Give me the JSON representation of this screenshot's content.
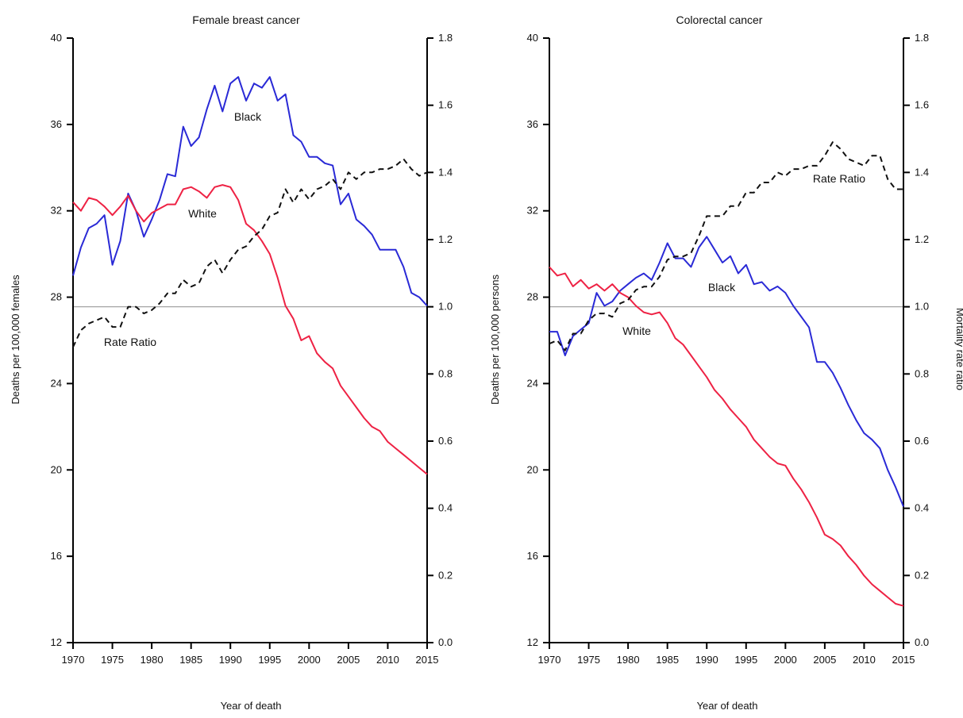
{
  "chart_data": [
    {
      "type": "line",
      "title": "Female breast cancer",
      "xlabel": "Year of death",
      "ylabel": "Deaths per 100,000 females",
      "y2label": "",
      "xlim": [
        1970,
        2015
      ],
      "ylim": [
        12,
        40
      ],
      "y2lim": [
        0.0,
        1.8
      ],
      "x_ticks": [
        "1970",
        "1975",
        "1980",
        "1985",
        "1990",
        "1995",
        "2000",
        "2005",
        "2010",
        "2015"
      ],
      "y_ticks": [
        "12",
        "16",
        "20",
        "24",
        "28",
        "32",
        "36",
        "40"
      ],
      "y2_ticks": [
        "0.0",
        "0.2",
        "0.4",
        "0.6",
        "0.8",
        "1.0",
        "1.2",
        "1.4",
        "1.6",
        "1.8"
      ],
      "reference_line_y2": 1.0,
      "x": [
        1970,
        1971,
        1972,
        1973,
        1974,
        1975,
        1976,
        1977,
        1978,
        1979,
        1980,
        1981,
        1982,
        1983,
        1984,
        1985,
        1986,
        1987,
        1988,
        1989,
        1990,
        1991,
        1992,
        1993,
        1994,
        1995,
        1996,
        1997,
        1998,
        1999,
        2000,
        2001,
        2002,
        2003,
        2004,
        2005,
        2006,
        2007,
        2008,
        2009,
        2010,
        2011,
        2012,
        2013,
        2014,
        2015
      ],
      "series": [
        {
          "name": "Black",
          "axis": "left",
          "color": "#2a2ad6",
          "dashed": false,
          "values": [
            29.0,
            30.3,
            31.2,
            31.4,
            31.8,
            29.5,
            30.6,
            32.8,
            32.0,
            30.8,
            31.6,
            32.5,
            33.7,
            33.6,
            35.9,
            35.0,
            35.4,
            36.7,
            37.8,
            36.6,
            37.9,
            38.2,
            37.1,
            37.9,
            37.7,
            38.2,
            37.1,
            37.4,
            35.5,
            35.2,
            34.5,
            34.5,
            34.2,
            34.1,
            32.3,
            32.8,
            31.6,
            31.3,
            30.9,
            30.2,
            30.2,
            30.2,
            29.4,
            28.2,
            28.0,
            27.6
          ]
        },
        {
          "name": "White",
          "axis": "left",
          "color": "#ee2244",
          "dashed": false,
          "values": [
            32.4,
            32.0,
            32.6,
            32.5,
            32.2,
            31.8,
            32.2,
            32.7,
            32.0,
            31.5,
            31.9,
            32.1,
            32.3,
            32.3,
            33.0,
            33.1,
            32.9,
            32.6,
            33.1,
            33.2,
            33.1,
            32.5,
            31.4,
            31.1,
            30.6,
            30.0,
            28.9,
            27.6,
            27.0,
            26.0,
            26.2,
            25.4,
            25.0,
            24.7,
            23.9,
            23.4,
            22.9,
            22.4,
            22.0,
            21.8,
            21.3,
            21.0,
            20.7,
            20.4,
            20.1,
            19.8
          ]
        },
        {
          "name": "Rate Ratio",
          "axis": "right",
          "color": "#111111",
          "dashed": true,
          "values": [
            0.88,
            0.93,
            0.95,
            0.96,
            0.97,
            0.94,
            0.94,
            1.0,
            1.0,
            0.98,
            0.99,
            1.01,
            1.04,
            1.04,
            1.08,
            1.06,
            1.07,
            1.12,
            1.14,
            1.1,
            1.14,
            1.17,
            1.18,
            1.21,
            1.23,
            1.27,
            1.28,
            1.35,
            1.31,
            1.35,
            1.32,
            1.35,
            1.36,
            1.38,
            1.35,
            1.4,
            1.38,
            1.4,
            1.4,
            1.41,
            1.41,
            1.42,
            1.44,
            1.41,
            1.39,
            1.4
          ]
        }
      ],
      "labels": [
        "Black",
        "White",
        "Rate Ratio"
      ]
    },
    {
      "type": "line",
      "title": "Colorectal cancer",
      "xlabel": "Year of death",
      "ylabel": "Deaths per 100,000 persons",
      "y2label": "Mortality rate ratio",
      "xlim": [
        1970,
        2015
      ],
      "ylim": [
        12,
        40
      ],
      "y2lim": [
        0.0,
        1.8
      ],
      "x_ticks": [
        "1970",
        "1975",
        "1980",
        "1985",
        "1990",
        "1995",
        "2000",
        "2005",
        "2010",
        "2015"
      ],
      "y_ticks": [
        "12",
        "16",
        "20",
        "24",
        "28",
        "32",
        "36",
        "40"
      ],
      "y2_ticks": [
        "0.0",
        "0.2",
        "0.4",
        "0.6",
        "0.8",
        "1.0",
        "1.2",
        "1.4",
        "1.6",
        "1.8"
      ],
      "reference_line_y2": 1.0,
      "x": [
        1970,
        1971,
        1972,
        1973,
        1974,
        1975,
        1976,
        1977,
        1978,
        1979,
        1980,
        1981,
        1982,
        1983,
        1984,
        1985,
        1986,
        1987,
        1988,
        1989,
        1990,
        1991,
        1992,
        1993,
        1994,
        1995,
        1996,
        1997,
        1998,
        1999,
        2000,
        2001,
        2002,
        2003,
        2004,
        2005,
        2006,
        2007,
        2008,
        2009,
        2010,
        2011,
        2012,
        2013,
        2014,
        2015
      ],
      "series": [
        {
          "name": "Black",
          "axis": "left",
          "color": "#2a2ad6",
          "dashed": false,
          "values": [
            26.4,
            26.4,
            25.3,
            26.2,
            26.5,
            26.8,
            28.2,
            27.6,
            27.8,
            28.3,
            28.6,
            28.9,
            29.1,
            28.8,
            29.6,
            30.5,
            29.8,
            29.8,
            29.4,
            30.3,
            30.8,
            30.2,
            29.6,
            29.9,
            29.1,
            29.5,
            28.6,
            28.7,
            28.3,
            28.5,
            28.2,
            27.6,
            27.1,
            26.6,
            25.0,
            25.0,
            24.5,
            23.8,
            23.0,
            22.3,
            21.7,
            21.4,
            21.0,
            20.0,
            19.2,
            18.3
          ]
        },
        {
          "name": "White",
          "axis": "left",
          "color": "#ee2244",
          "dashed": false,
          "values": [
            29.4,
            29.0,
            29.1,
            28.5,
            28.8,
            28.4,
            28.6,
            28.3,
            28.6,
            28.2,
            28.0,
            27.6,
            27.3,
            27.2,
            27.3,
            26.8,
            26.1,
            25.8,
            25.3,
            24.8,
            24.3,
            23.7,
            23.3,
            22.8,
            22.4,
            22.0,
            21.4,
            21.0,
            20.6,
            20.3,
            20.2,
            19.6,
            19.1,
            18.5,
            17.8,
            17.0,
            16.8,
            16.5,
            16.0,
            15.6,
            15.1,
            14.7,
            14.4,
            14.1,
            13.8,
            13.7
          ]
        },
        {
          "name": "Rate Ratio",
          "axis": "right",
          "color": "#111111",
          "dashed": true,
          "values": [
            0.89,
            0.9,
            0.87,
            0.92,
            0.92,
            0.96,
            0.98,
            0.98,
            0.97,
            1.01,
            1.02,
            1.05,
            1.06,
            1.06,
            1.09,
            1.14,
            1.15,
            1.15,
            1.16,
            1.21,
            1.27,
            1.27,
            1.27,
            1.3,
            1.3,
            1.34,
            1.34,
            1.37,
            1.37,
            1.4,
            1.39,
            1.41,
            1.41,
            1.42,
            1.42,
            1.45,
            1.49,
            1.47,
            1.44,
            1.43,
            1.42,
            1.45,
            1.45,
            1.38,
            1.35,
            1.35
          ]
        }
      ],
      "labels": [
        "Black",
        "White",
        "Rate Ratio"
      ]
    }
  ]
}
